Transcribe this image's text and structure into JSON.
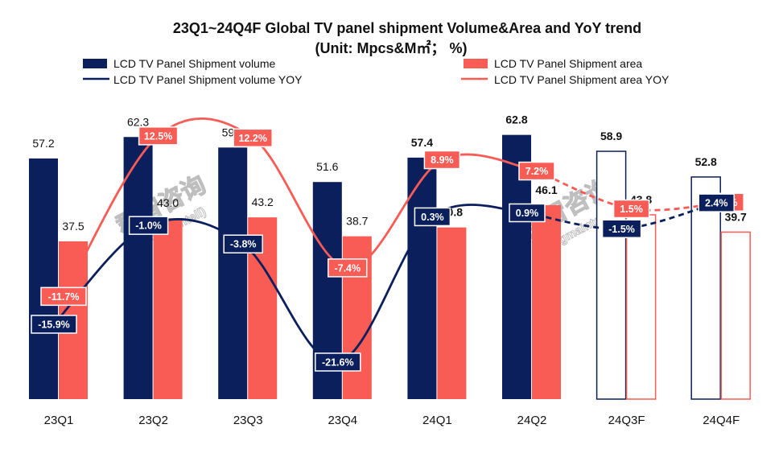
{
  "chart_data": {
    "type": "bar",
    "title": "23Q1~24Q4F Global TV panel shipment Volume&Area and YoY trend",
    "subtitle": "(Unit: Mpcs&M㎡； %)",
    "categories": [
      "23Q1",
      "23Q2",
      "23Q3",
      "23Q4",
      "24Q1",
      "24Q2",
      "24Q3F",
      "24Q4F"
    ],
    "forecast_categories": [
      "24Q3F",
      "24Q4F"
    ],
    "ylim": [
      0,
      70
    ],
    "y2lim": [
      -25,
      16
    ],
    "grid": false,
    "legend_position": "top",
    "series": [
      {
        "name": "LCD TV Panel Shipment volume",
        "kind": "bar",
        "color": "#0b1f5c",
        "values": [
          57.2,
          62.3,
          59.8,
          51.6,
          57.4,
          62.8,
          58.9,
          52.8
        ],
        "labels": [
          "57.2",
          "62.3",
          "59.8",
          "51.6",
          "57.4",
          "62.8",
          "58.9",
          "52.8"
        ]
      },
      {
        "name": "LCD TV Panel Shipment area",
        "kind": "bar",
        "color": "#f95b55",
        "values": [
          37.5,
          43.0,
          43.2,
          38.7,
          40.8,
          46.1,
          43.8,
          39.7
        ],
        "labels": [
          "37.5",
          "43.0",
          "43.2",
          "38.7",
          "40.8",
          "46.1",
          "43.8",
          "39.7"
        ]
      },
      {
        "name": "LCD TV Panel Shipment volume YOY",
        "kind": "line",
        "color": "#0b1f5c",
        "values": [
          -15.9,
          -1.0,
          -3.8,
          -21.6,
          0.3,
          0.9,
          -1.5,
          2.4
        ],
        "labels": [
          "-15.9%",
          "-1.0%",
          "-3.8%",
          "-21.6%",
          "0.3%",
          "0.9%",
          "-1.5%",
          "2.4%"
        ]
      },
      {
        "name": "LCD TV Panel Shipment area YOY",
        "kind": "line",
        "color": "#f95b55",
        "values": [
          -11.7,
          12.5,
          12.2,
          -7.4,
          8.9,
          7.2,
          1.5,
          2.5
        ],
        "labels": [
          "-11.7%",
          "12.5%",
          "12.2%",
          "-7.4%",
          "8.9%",
          "7.2%",
          "1.5%",
          "2.5%"
        ]
      }
    ]
  },
  "watermarks": [
    {
      "main": "群智咨询",
      "sub": "(Sigmaintell)"
    },
    {
      "main": "群智咨询",
      "sub": "(Sigmaintell)"
    }
  ]
}
